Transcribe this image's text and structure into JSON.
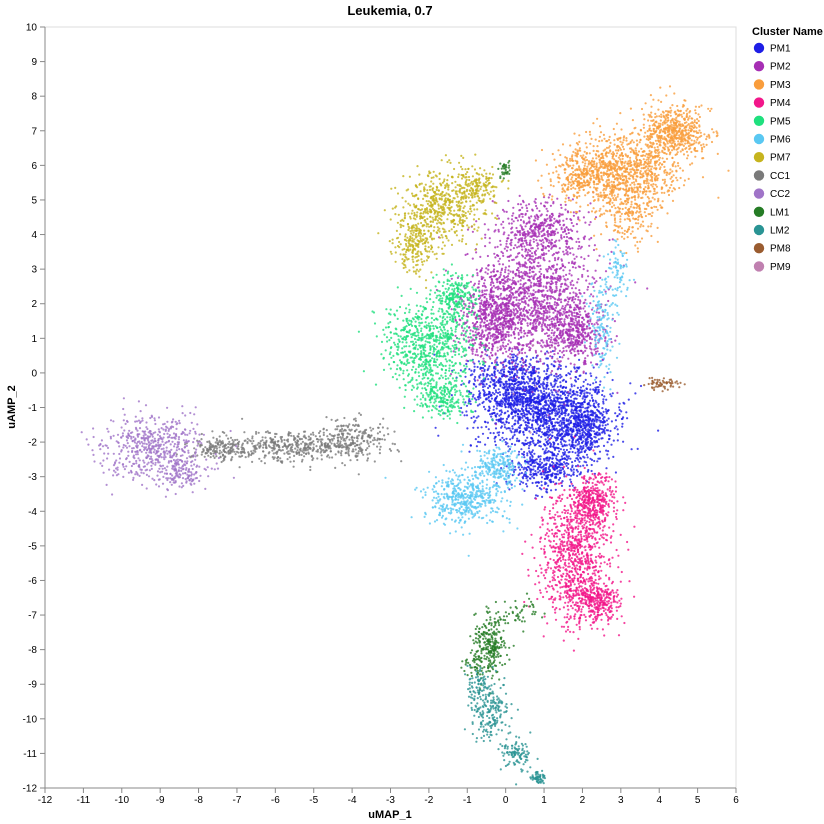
{
  "chart_data": {
    "type": "scatter",
    "title": "Leukemia, 0.7",
    "xlabel": "uMAP_1",
    "ylabel": "uAMP_2",
    "xlim": [
      -12,
      6
    ],
    "ylim": [
      -12,
      10
    ],
    "xticks": [
      -12,
      -11,
      -10,
      -9,
      -8,
      -7,
      -6,
      -5,
      -4,
      -3,
      -2,
      -1,
      0,
      1,
      2,
      3,
      4,
      5,
      6
    ],
    "yticks": [
      -12,
      -11,
      -10,
      -9,
      -8,
      -7,
      -6,
      -5,
      -4,
      -3,
      -2,
      -1,
      0,
      1,
      2,
      3,
      4,
      5,
      6,
      7,
      8,
      9,
      10
    ],
    "grid": false,
    "legend": {
      "title": "Cluster Name",
      "placement": "right"
    },
    "series": [
      {
        "name": "PM1",
        "color": "#1e1ee6",
        "n": 2600,
        "blobs": [
          [
            1.1,
            -1.2,
            1.1,
            0.85,
            1
          ],
          [
            0.2,
            -0.4,
            0.8,
            0.6,
            0.6
          ],
          [
            2.0,
            -1.5,
            0.5,
            0.8,
            0.5
          ],
          [
            1.0,
            -2.8,
            0.6,
            0.4,
            0.3
          ]
        ]
      },
      {
        "name": "PM2",
        "color": "#a62eb4",
        "n": 2600,
        "blobs": [
          [
            0.7,
            2.2,
            1.05,
            1.25,
            1
          ],
          [
            -0.4,
            1.5,
            0.5,
            0.8,
            0.4
          ],
          [
            1.8,
            1.2,
            0.5,
            0.6,
            0.3
          ],
          [
            0.9,
            4.2,
            0.8,
            0.5,
            0.3
          ]
        ]
      },
      {
        "name": "PM3",
        "color": "#f99d3c",
        "n": 1900,
        "blobs": [
          [
            3.1,
            5.9,
            1.0,
            0.75,
            1
          ],
          [
            4.4,
            7.0,
            0.55,
            0.5,
            0.6
          ],
          [
            2.0,
            5.6,
            0.5,
            0.4,
            0.3
          ],
          [
            3.2,
            4.5,
            0.5,
            0.5,
            0.2
          ]
        ]
      },
      {
        "name": "PM4",
        "color": "#f2178a",
        "n": 1500,
        "blobs": [
          [
            1.8,
            -5.3,
            0.6,
            1.3,
            1
          ],
          [
            2.3,
            -3.7,
            0.4,
            0.5,
            0.4
          ],
          [
            2.4,
            -6.6,
            0.4,
            0.4,
            0.3
          ]
        ]
      },
      {
        "name": "PM5",
        "color": "#1fe07e",
        "n": 1150,
        "blobs": [
          [
            -2.0,
            0.8,
            0.75,
            0.8,
            1
          ],
          [
            -1.3,
            2.2,
            0.35,
            0.5,
            0.3
          ],
          [
            -1.6,
            -0.7,
            0.45,
            0.4,
            0.3
          ]
        ]
      },
      {
        "name": "PM6",
        "color": "#5ac8f2",
        "n": 900,
        "blobs": [
          [
            -1.0,
            -3.6,
            0.7,
            0.55,
            1
          ],
          [
            -0.2,
            -2.7,
            0.4,
            0.4,
            0.4
          ],
          [
            2.5,
            1.3,
            0.25,
            0.9,
            0.3
          ],
          [
            2.9,
            3.0,
            0.2,
            0.5,
            0.15
          ]
        ]
      },
      {
        "name": "PM7",
        "color": "#c6b41e",
        "n": 900,
        "blobs": [
          [
            -1.6,
            4.8,
            0.75,
            0.7,
            1
          ],
          [
            -2.4,
            3.7,
            0.35,
            0.55,
            0.4
          ],
          [
            -0.7,
            5.4,
            0.4,
            0.3,
            0.3
          ]
        ]
      },
      {
        "name": "CC1",
        "color": "#7a7a7a",
        "n": 800,
        "blobs": [
          [
            -5.5,
            -2.1,
            1.3,
            0.3,
            1
          ],
          [
            -3.9,
            -1.9,
            0.6,
            0.4,
            0.5
          ],
          [
            -7.4,
            -2.2,
            0.6,
            0.22,
            0.4
          ]
        ]
      },
      {
        "name": "CC2",
        "color": "#a074c8",
        "n": 650,
        "blobs": [
          [
            -9.2,
            -2.1,
            0.85,
            0.6,
            1
          ],
          [
            -8.4,
            -2.9,
            0.5,
            0.35,
            0.3
          ]
        ]
      },
      {
        "name": "LM1",
        "color": "#257c25",
        "n": 380,
        "blobs": [
          [
            -0.4,
            -7.8,
            0.3,
            0.55,
            1
          ],
          [
            -0.7,
            -8.5,
            0.3,
            0.3,
            0.4
          ],
          [
            0.3,
            -7.0,
            0.4,
            0.3,
            0.25
          ],
          [
            0.0,
            5.9,
            0.12,
            0.18,
            0.15
          ]
        ]
      },
      {
        "name": "LM2",
        "color": "#2a9494",
        "n": 420,
        "blobs": [
          [
            -0.4,
            -9.8,
            0.35,
            0.6,
            1
          ],
          [
            0.3,
            -11.0,
            0.3,
            0.35,
            0.5
          ],
          [
            0.85,
            -11.7,
            0.12,
            0.12,
            0.3
          ],
          [
            -0.7,
            -9.0,
            0.2,
            0.3,
            0.3
          ]
        ]
      },
      {
        "name": "PM8",
        "color": "#9a5c30",
        "n": 60,
        "blobs": [
          [
            4.1,
            -0.3,
            0.32,
            0.13,
            1
          ]
        ]
      },
      {
        "name": "PM9",
        "color": "#c080b0",
        "n": 8,
        "blobs": [
          [
            0.5,
            0.0,
            1.0,
            1.0,
            1
          ]
        ]
      }
    ]
  }
}
